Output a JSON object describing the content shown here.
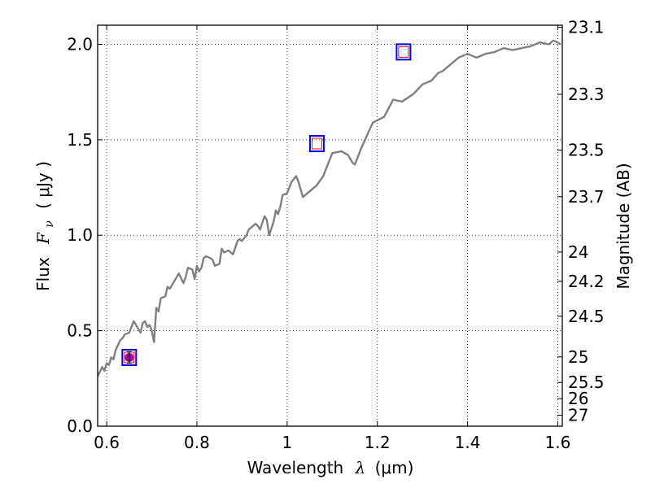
{
  "chart_data": {
    "type": "line",
    "xlabel_text": "Wavelength",
    "xlabel_symbol": "λ",
    "xlabel_unit": "(μm)",
    "ylabel_text": "Flux",
    "ylabel_symbol": "F",
    "ylabel_sub": "ν",
    "ylabel_unit": "( μJy )",
    "y2label": "Magnitude (AB)",
    "xlim": [
      0.58,
      1.61
    ],
    "ylim": [
      0.0,
      2.1
    ],
    "grid": true,
    "x_ticks": [
      {
        "value": 0.6,
        "label": "0.6"
      },
      {
        "value": 0.8,
        "label": "0.8"
      },
      {
        "value": 1.0,
        "label": "1"
      },
      {
        "value": 1.2,
        "label": "1.2"
      },
      {
        "value": 1.4,
        "label": "1.4"
      },
      {
        "value": 1.6,
        "label": "1.6"
      }
    ],
    "y_ticks": [
      {
        "value": 0.0,
        "label": "0.0"
      },
      {
        "value": 0.5,
        "label": "0.5"
      },
      {
        "value": 1.0,
        "label": "1.0"
      },
      {
        "value": 1.5,
        "label": "1.5"
      },
      {
        "value": 2.0,
        "label": "2.0"
      }
    ],
    "mag_ticks": [
      {
        "value": 23.1,
        "label": "23.1"
      },
      {
        "value": 23.3,
        "label": "23.3"
      },
      {
        "value": 23.5,
        "label": "23.5"
      },
      {
        "value": 23.7,
        "label": "23.7"
      },
      {
        "value": 24.0,
        "label": "24"
      },
      {
        "value": 24.2,
        "label": "24.2"
      },
      {
        "value": 24.5,
        "label": "24.5"
      },
      {
        "value": 25.0,
        "label": "25"
      },
      {
        "value": 25.5,
        "label": "25.5"
      },
      {
        "value": 26.0,
        "label": "26"
      },
      {
        "value": 27.0,
        "label": "27"
      }
    ],
    "series": [
      {
        "line_color": "#808080",
        "x": [
          0.58,
          0.59,
          0.595,
          0.6,
          0.605,
          0.61,
          0.615,
          0.62,
          0.63,
          0.635,
          0.64,
          0.65,
          0.66,
          0.67,
          0.675,
          0.68,
          0.685,
          0.69,
          0.695,
          0.7,
          0.705,
          0.71,
          0.715,
          0.72,
          0.73,
          0.735,
          0.74,
          0.75,
          0.76,
          0.77,
          0.775,
          0.78,
          0.79,
          0.795,
          0.8,
          0.805,
          0.81,
          0.815,
          0.82,
          0.83,
          0.835,
          0.84,
          0.85,
          0.855,
          0.86,
          0.87,
          0.88,
          0.89,
          0.895,
          0.9,
          0.91,
          0.915,
          0.92,
          0.93,
          0.935,
          0.94,
          0.95,
          0.955,
          0.96,
          0.97,
          0.975,
          0.98,
          0.985,
          0.99,
          1.0,
          1.01,
          1.02,
          1.025,
          1.035,
          1.05,
          1.065,
          1.08,
          1.1,
          1.12,
          1.135,
          1.145,
          1.15,
          1.165,
          1.19,
          1.215,
          1.235,
          1.255,
          1.28,
          1.3,
          1.32,
          1.335,
          1.345,
          1.36,
          1.38,
          1.4,
          1.42,
          1.44,
          1.46,
          1.48,
          1.5,
          1.52,
          1.54,
          1.56,
          1.58,
          1.59,
          1.6,
          1.605
        ],
        "y": [
          0.26,
          0.31,
          0.29,
          0.33,
          0.32,
          0.36,
          0.35,
          0.4,
          0.45,
          0.46,
          0.48,
          0.49,
          0.55,
          0.51,
          0.49,
          0.54,
          0.55,
          0.52,
          0.53,
          0.5,
          0.44,
          0.62,
          0.6,
          0.67,
          0.68,
          0.73,
          0.72,
          0.76,
          0.8,
          0.75,
          0.78,
          0.83,
          0.82,
          0.77,
          0.84,
          0.81,
          0.83,
          0.88,
          0.89,
          0.88,
          0.87,
          0.84,
          0.85,
          0.93,
          0.91,
          0.92,
          0.9,
          0.97,
          0.98,
          0.97,
          1.0,
          1.03,
          1.04,
          1.06,
          1.05,
          1.03,
          1.1,
          1.08,
          1.0,
          1.07,
          1.13,
          1.11,
          1.15,
          1.21,
          1.22,
          1.28,
          1.31,
          1.28,
          1.2,
          1.23,
          1.26,
          1.31,
          1.43,
          1.44,
          1.42,
          1.38,
          1.37,
          1.46,
          1.59,
          1.62,
          1.71,
          1.7,
          1.74,
          1.79,
          1.81,
          1.85,
          1.86,
          1.89,
          1.93,
          1.95,
          1.93,
          1.95,
          1.96,
          1.98,
          1.97,
          1.98,
          1.99,
          2.01,
          2.0,
          2.02,
          2.01,
          2.0
        ]
      }
    ],
    "photometry": [
      {
        "x": 0.65,
        "y": 0.36,
        "err": 0.03,
        "model_square": "#0000ff",
        "obs_square": "#ff0000",
        "filled_marker": "#aa00aa"
      },
      {
        "x": 1.066,
        "y": 1.48,
        "err": 0.0,
        "model_square": "#0000ff",
        "obs_square": "#ff0000",
        "filled_marker": ""
      },
      {
        "x": 1.258,
        "y": 1.96,
        "err": 0.0,
        "model_square": "#0000ff",
        "obs_square": "#ff0000",
        "filled_marker": ""
      }
    ]
  }
}
